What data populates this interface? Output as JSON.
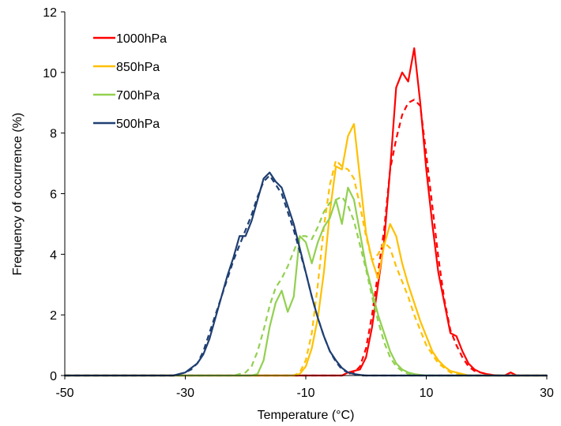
{
  "chart_data": {
    "type": "line",
    "title": "",
    "xlabel": "Temperature (°C)",
    "ylabel": "Frequency of occurrence (%)",
    "xlim": [
      -50,
      30
    ],
    "ylim": [
      0,
      12
    ],
    "x_ticks": [
      "-50",
      "-30",
      "-10",
      "10",
      "30"
    ],
    "y_ticks": [
      "0",
      "2",
      "4",
      "6",
      "8",
      "10",
      "12"
    ],
    "grid": false,
    "legend": "top-left",
    "x_step": 1,
    "series": [
      {
        "name": "1000hPa",
        "color": "#ff0000",
        "style": "solid",
        "x_start": -50,
        "values": [
          0,
          0,
          0,
          0,
          0,
          0,
          0,
          0,
          0,
          0,
          0,
          0,
          0,
          0,
          0,
          0,
          0,
          0,
          0,
          0,
          0,
          0,
          0,
          0,
          0,
          0,
          0,
          0,
          0,
          0,
          0,
          0,
          0,
          0,
          0,
          0,
          0,
          0,
          0,
          0,
          0,
          0,
          0,
          0,
          0,
          0,
          0,
          0.1,
          0.15,
          0.2,
          0.6,
          1.6,
          3.0,
          4.4,
          6.8,
          9.5,
          10.0,
          9.7,
          10.8,
          9.0,
          6.8,
          5.0,
          3.4,
          2.4,
          1.4,
          1.3,
          0.8,
          0.4,
          0.2,
          0.1,
          0.05,
          0.02,
          0,
          0,
          0.1,
          0,
          0,
          0,
          0,
          0,
          0
        ]
      },
      {
        "name": "",
        "color": "#ff0000",
        "style": "dashed",
        "x_start": -50,
        "values": [
          0,
          0,
          0,
          0,
          0,
          0,
          0,
          0,
          0,
          0,
          0,
          0,
          0,
          0,
          0,
          0,
          0,
          0,
          0,
          0,
          0,
          0,
          0,
          0,
          0,
          0,
          0,
          0,
          0,
          0,
          0,
          0,
          0,
          0,
          0,
          0,
          0,
          0,
          0,
          0,
          0,
          0,
          0,
          0,
          0,
          0,
          0,
          0.05,
          0.1,
          0.3,
          0.9,
          2.0,
          3.4,
          4.8,
          6.8,
          7.8,
          8.6,
          9.0,
          9.1,
          8.9,
          7.3,
          5.6,
          3.9,
          2.5,
          1.5,
          1.0,
          0.6,
          0.3,
          0.15,
          0.1,
          0.05,
          0,
          0,
          0,
          0,
          0,
          0,
          0,
          0,
          0,
          0
        ]
      },
      {
        "name": "850hPa",
        "color": "#ffc000",
        "style": "solid",
        "x_start": -50,
        "values": [
          0,
          0,
          0,
          0,
          0,
          0,
          0,
          0,
          0,
          0,
          0,
          0,
          0,
          0,
          0,
          0,
          0,
          0,
          0,
          0,
          0,
          0,
          0,
          0,
          0,
          0,
          0,
          0,
          0,
          0,
          0,
          0,
          0,
          0,
          0,
          0,
          0,
          0,
          0,
          0.05,
          0.3,
          0.9,
          1.9,
          3.4,
          5.4,
          6.9,
          6.8,
          7.9,
          8.3,
          6.5,
          4.7,
          3.8,
          3.2,
          4.3,
          5.0,
          4.6,
          3.7,
          3.0,
          2.4,
          1.8,
          1.3,
          0.8,
          0.5,
          0.3,
          0.15,
          0.1,
          0.05,
          0,
          0,
          0,
          0,
          0,
          0,
          0,
          0,
          0,
          0,
          0,
          0,
          0,
          0
        ]
      },
      {
        "name": "",
        "color": "#ffc000",
        "style": "dashed",
        "x_start": -50,
        "values": [
          0,
          0,
          0,
          0,
          0,
          0,
          0,
          0,
          0,
          0,
          0,
          0,
          0,
          0,
          0,
          0,
          0,
          0,
          0,
          0,
          0,
          0,
          0,
          0,
          0,
          0,
          0,
          0,
          0,
          0,
          0,
          0,
          0,
          0,
          0,
          0,
          0,
          0,
          0,
          0.1,
          0.5,
          1.4,
          3.0,
          4.9,
          6.3,
          7.1,
          6.9,
          6.8,
          6.5,
          5.6,
          4.6,
          3.8,
          4.0,
          4.4,
          4.2,
          3.6,
          3.1,
          2.6,
          2.0,
          1.5,
          1.0,
          0.7,
          0.4,
          0.25,
          0.1,
          0.05,
          0,
          0,
          0,
          0,
          0,
          0,
          0,
          0,
          0,
          0,
          0,
          0,
          0,
          0,
          0
        ]
      },
      {
        "name": "700hPa",
        "color": "#92d050",
        "style": "solid",
        "x_start": -50,
        "values": [
          0,
          0,
          0,
          0,
          0,
          0,
          0,
          0,
          0,
          0,
          0,
          0,
          0,
          0,
          0,
          0,
          0,
          0,
          0,
          0,
          0,
          0,
          0,
          0,
          0,
          0,
          0,
          0,
          0,
          0,
          0,
          0,
          0.05,
          0.5,
          1.6,
          2.4,
          2.8,
          2.1,
          2.6,
          4.6,
          4.4,
          3.7,
          4.4,
          4.9,
          5.2,
          5.8,
          5.0,
          6.2,
          5.8,
          4.7,
          3.6,
          2.8,
          2.0,
          1.4,
          0.8,
          0.4,
          0.2,
          0.1,
          0.05,
          0.02,
          0,
          0,
          0,
          0,
          0,
          0,
          0,
          0,
          0,
          0,
          0,
          0,
          0,
          0,
          0,
          0,
          0,
          0,
          0,
          0,
          0
        ]
      },
      {
        "name": "",
        "color": "#92d050",
        "style": "dashed",
        "x_start": -50,
        "values": [
          0,
          0,
          0,
          0,
          0,
          0,
          0,
          0,
          0,
          0,
          0,
          0,
          0,
          0,
          0,
          0,
          0,
          0,
          0,
          0,
          0,
          0,
          0,
          0,
          0,
          0,
          0,
          0,
          0,
          0.05,
          0.1,
          0.3,
          0.8,
          1.5,
          2.3,
          2.9,
          3.2,
          3.6,
          4.1,
          4.6,
          4.6,
          4.5,
          4.9,
          5.4,
          5.7,
          5.8,
          5.9,
          5.6,
          5.1,
          4.3,
          3.5,
          2.6,
          1.8,
          1.1,
          0.6,
          0.3,
          0.15,
          0.05,
          0,
          0,
          0,
          0,
          0,
          0,
          0,
          0,
          0,
          0,
          0,
          0,
          0,
          0,
          0,
          0,
          0,
          0,
          0,
          0,
          0,
          0,
          0
        ]
      },
      {
        "name": "500hPa",
        "color": "#1f3f73",
        "style": "solid",
        "x_start": -50,
        "values": [
          0,
          0,
          0,
          0,
          0,
          0,
          0,
          0,
          0,
          0,
          0,
          0,
          0,
          0,
          0,
          0,
          0,
          0,
          0,
          0.05,
          0.1,
          0.25,
          0.4,
          0.7,
          1.2,
          1.9,
          2.6,
          3.3,
          3.9,
          4.6,
          4.6,
          5.1,
          5.8,
          6.5,
          6.7,
          6.4,
          6.2,
          5.6,
          5.0,
          4.2,
          3.4,
          2.6,
          1.9,
          1.3,
          0.8,
          0.5,
          0.25,
          0.1,
          0.05,
          0.02,
          0,
          0,
          0,
          0,
          0,
          0,
          0,
          0,
          0,
          0,
          0,
          0,
          0,
          0,
          0,
          0,
          0,
          0,
          0,
          0,
          0,
          0,
          0,
          0,
          0,
          0,
          0,
          0,
          0,
          0,
          0
        ]
      },
      {
        "name": "",
        "color": "#1f3f73",
        "style": "dashed",
        "x_start": -50,
        "values": [
          0,
          0,
          0,
          0,
          0,
          0,
          0,
          0,
          0,
          0,
          0,
          0,
          0,
          0,
          0,
          0,
          0,
          0,
          0,
          0.05,
          0.1,
          0.2,
          0.4,
          0.8,
          1.4,
          2.0,
          2.6,
          3.2,
          3.8,
          4.3,
          4.8,
          5.3,
          5.9,
          6.4,
          6.6,
          6.3,
          6.0,
          5.4,
          4.8,
          4.1,
          3.4,
          2.6,
          1.9,
          1.3,
          0.8,
          0.45,
          0.2,
          0.1,
          0.05,
          0,
          0,
          0,
          0,
          0,
          0,
          0,
          0,
          0,
          0,
          0,
          0,
          0,
          0,
          0,
          0,
          0,
          0,
          0,
          0,
          0,
          0,
          0,
          0,
          0,
          0,
          0,
          0,
          0,
          0,
          0,
          0
        ]
      }
    ]
  }
}
